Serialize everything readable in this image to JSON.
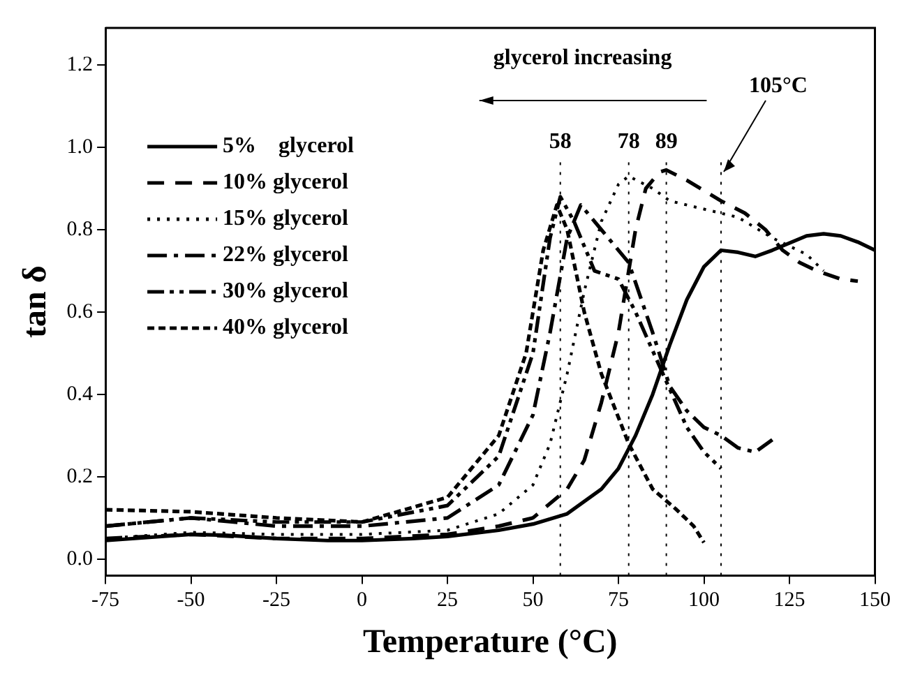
{
  "chart_data": {
    "type": "line",
    "xlabel": "Temperature (°C)",
    "ylabel": "tan δ",
    "xlim": [
      -75,
      150
    ],
    "ylim": [
      -0.04,
      1.29
    ],
    "xticks": [
      -75,
      -50,
      -25,
      0,
      25,
      50,
      75,
      100,
      125,
      150
    ],
    "yticks": [
      {
        "value": 0,
        "label": "0.0"
      },
      {
        "value": 0.2,
        "label": "0.2"
      },
      {
        "value": 0.4,
        "label": "0.4"
      },
      {
        "value": 0.6,
        "label": "0.6"
      },
      {
        "value": 0.8,
        "label": "0.8"
      },
      {
        "value": 1,
        "label": "1.0"
      },
      {
        "value": 1.2,
        "label": "1.2"
      }
    ],
    "grid": false,
    "legend": "top left",
    "marker": "none",
    "series": [
      {
        "name": "5%   glycerol",
        "color": "#000000",
        "line_style": "solid",
        "x": [
          -75,
          -50,
          -40,
          -25,
          -10,
          0,
          15,
          25,
          40,
          50,
          60,
          70,
          75,
          80,
          85,
          90,
          95,
          100,
          105,
          110,
          115,
          120,
          130,
          135,
          140,
          145,
          150
        ],
        "values": [
          0.045,
          0.06,
          0.058,
          0.05,
          0.045,
          0.045,
          0.05,
          0.055,
          0.07,
          0.085,
          0.11,
          0.17,
          0.22,
          0.3,
          0.4,
          0.52,
          0.63,
          0.71,
          0.75,
          0.745,
          0.735,
          0.75,
          0.785,
          0.79,
          0.785,
          0.77,
          0.75
        ]
      },
      {
        "name": "10% glycerol",
        "color": "#000000",
        "line_style": "dashed",
        "x": [
          -75,
          -50,
          -25,
          0,
          25,
          40,
          50,
          60,
          65,
          70,
          75,
          78,
          80,
          83,
          87,
          89,
          95,
          105,
          112,
          118,
          123,
          128,
          133,
          140,
          145
        ],
        "values": [
          0.05,
          0.06,
          0.05,
          0.05,
          0.06,
          0.08,
          0.1,
          0.17,
          0.24,
          0.38,
          0.55,
          0.7,
          0.8,
          0.9,
          0.94,
          0.945,
          0.92,
          0.87,
          0.84,
          0.8,
          0.75,
          0.72,
          0.7,
          0.68,
          0.675
        ]
      },
      {
        "name": "15% glycerol",
        "color": "#000000",
        "line_style": "dotted",
        "x": [
          -75,
          -50,
          -25,
          0,
          25,
          40,
          50,
          55,
          60,
          65,
          70,
          75,
          78,
          85,
          90,
          100,
          110,
          120,
          130,
          135
        ],
        "values": [
          0.05,
          0.065,
          0.06,
          0.06,
          0.07,
          0.11,
          0.18,
          0.28,
          0.45,
          0.65,
          0.82,
          0.91,
          0.93,
          0.9,
          0.87,
          0.85,
          0.83,
          0.78,
          0.74,
          0.7
        ]
      },
      {
        "name": "22% glycerol",
        "color": "#000000",
        "line_style": "dashdot",
        "x": [
          -75,
          -50,
          -25,
          0,
          25,
          40,
          50,
          55,
          60,
          64,
          70,
          78,
          85,
          90,
          95,
          100,
          105,
          110,
          115,
          120
        ],
        "values": [
          0.08,
          0.1,
          0.08,
          0.08,
          0.1,
          0.18,
          0.35,
          0.55,
          0.78,
          0.86,
          0.8,
          0.72,
          0.55,
          0.42,
          0.36,
          0.32,
          0.3,
          0.27,
          0.26,
          0.29
        ]
      },
      {
        "name": "30% glycerol",
        "color": "#000000",
        "line_style": "dashdotdot",
        "x": [
          -75,
          -50,
          -25,
          0,
          25,
          40,
          50,
          55,
          58,
          62,
          68,
          75,
          80,
          88,
          95,
          100,
          105
        ],
        "values": [
          0.08,
          0.1,
          0.09,
          0.09,
          0.13,
          0.25,
          0.5,
          0.78,
          0.88,
          0.82,
          0.7,
          0.68,
          0.6,
          0.45,
          0.32,
          0.26,
          0.22
        ]
      },
      {
        "name": "40% glycerol",
        "color": "#000000",
        "line_style": "shortdash",
        "x": [
          -75,
          -50,
          -25,
          0,
          25,
          40,
          48,
          53,
          57,
          60,
          65,
          70,
          78,
          85,
          92,
          97,
          100
        ],
        "values": [
          0.12,
          0.115,
          0.1,
          0.09,
          0.15,
          0.3,
          0.5,
          0.75,
          0.86,
          0.8,
          0.6,
          0.45,
          0.28,
          0.17,
          0.12,
          0.08,
          0.04
        ]
      }
    ],
    "ref_lines": [
      {
        "axis": "x",
        "value": 58,
        "label": "58",
        "line_style": "dotted"
      },
      {
        "axis": "x",
        "value": 78,
        "label": "78",
        "line_style": "dotted"
      },
      {
        "axis": "x",
        "value": 89,
        "label": "89",
        "line_style": "dotted"
      },
      {
        "axis": "x",
        "value": 105,
        "label": "105°C",
        "line_style": "dotted"
      }
    ],
    "annotations": [
      "glycerol increasing"
    ]
  }
}
